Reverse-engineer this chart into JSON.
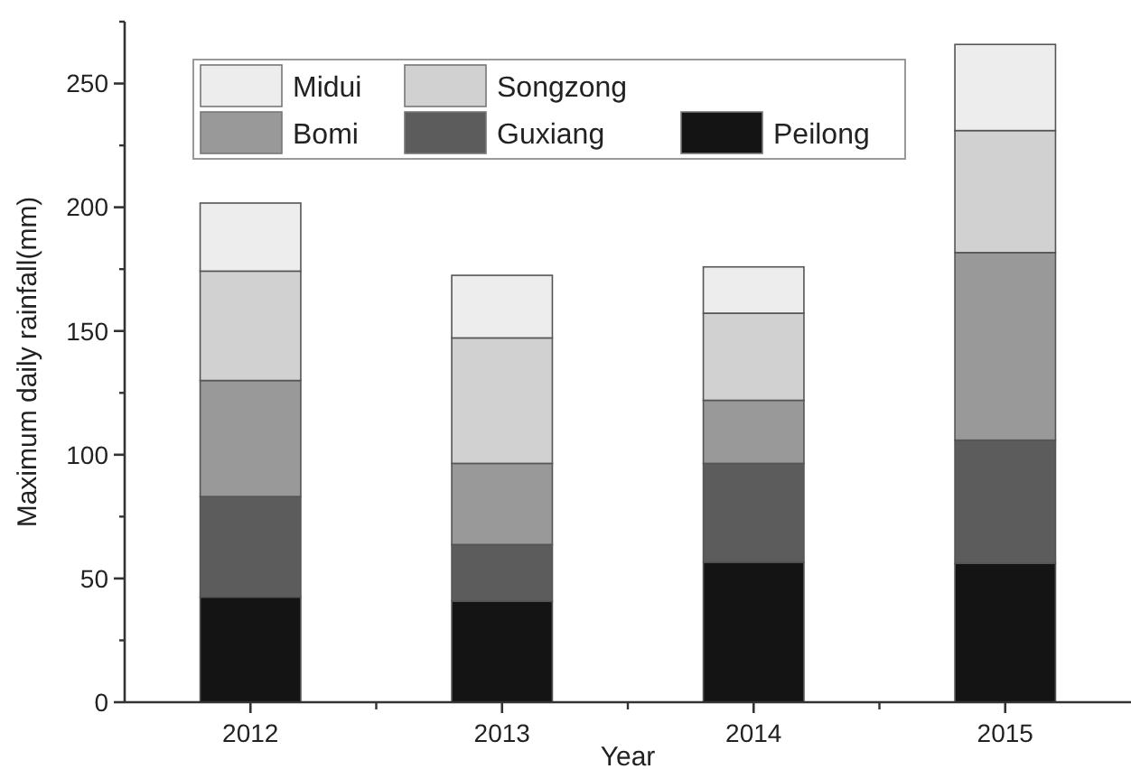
{
  "chart_data": {
    "type": "bar",
    "stacked": true,
    "xlabel": "Year",
    "ylabel": "Maximum daily rainfall(mm)",
    "categories": [
      "2012",
      "2013",
      "2014",
      "2015"
    ],
    "series": [
      {
        "name": "Peilong",
        "color": "#141414",
        "values": [
          42.5,
          40.8,
          56.6,
          56.1
        ]
      },
      {
        "name": "Guxiang",
        "color": "#5c5c5c",
        "values": [
          40.6,
          22.9,
          39.9,
          49.8
        ]
      },
      {
        "name": "Bomi",
        "color": "#999999",
        "values": [
          46.9,
          32.8,
          25.5,
          75.8
        ]
      },
      {
        "name": "Songzong",
        "color": "#d0d1d0",
        "values": [
          44.2,
          50.7,
          35.2,
          49.3
        ]
      },
      {
        "name": "Midui",
        "color": "#ededed",
        "values": [
          27.5,
          25.3,
          18.7,
          34.8
        ]
      }
    ],
    "ylim": [
      0,
      275
    ],
    "yticks": [
      0,
      50,
      100,
      150,
      200,
      250
    ],
    "legend": "top left"
  }
}
